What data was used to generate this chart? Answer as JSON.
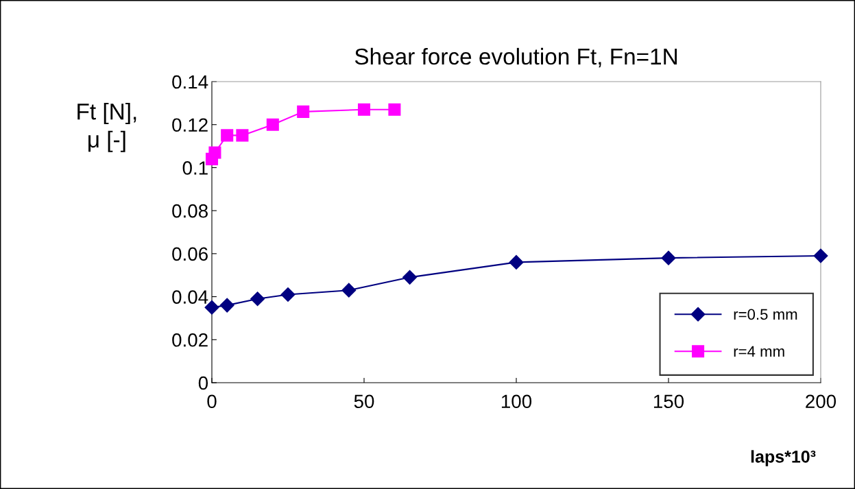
{
  "chart_data": {
    "type": "line",
    "title": "Shear force evolution Ft, Fn=1N",
    "xlabel": "laps*10³",
    "ylabel": "Ft [N],\nμ [-]",
    "series": [
      {
        "name": "r=0.5 mm",
        "color": "#000080",
        "marker": "diamond",
        "x": [
          0,
          5,
          15,
          25,
          45,
          65,
          100,
          150,
          200
        ],
        "values": [
          0.035,
          0.036,
          0.039,
          0.041,
          0.043,
          0.049,
          0.056,
          0.058,
          0.059
        ]
      },
      {
        "name": "r=4 mm",
        "color": "#ff00ff",
        "marker": "square",
        "x": [
          0,
          1,
          5,
          10,
          20,
          30,
          50,
          60
        ],
        "values": [
          0.104,
          0.107,
          0.115,
          0.115,
          0.12,
          0.126,
          0.127,
          0.127
        ]
      }
    ],
    "xlim": [
      0,
      200
    ],
    "xticks": [
      0,
      50,
      100,
      150,
      200
    ],
    "ylim": [
      0,
      0.14
    ],
    "yticks": [
      0,
      0.02,
      0.04,
      0.06,
      0.08,
      0.1,
      0.12,
      0.14
    ],
    "grid": false,
    "legend": "bottom right",
    "line_style": "solid"
  }
}
